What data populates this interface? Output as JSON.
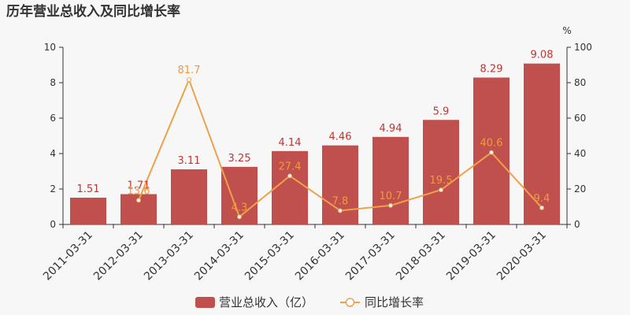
{
  "chart_data": {
    "type": "bar",
    "title": "历年营业总收入及同比增长率",
    "categories": [
      "2011-03-31",
      "2012-03-31",
      "2013-03-31",
      "2014-03-31",
      "2015-03-31",
      "2016-03-31",
      "2017-03-31",
      "2018-03-31",
      "2019-03-31",
      "2020-03-31"
    ],
    "series": [
      {
        "name": "营业总收入（亿）",
        "type": "bar",
        "axis": "left",
        "color": "#c0504d",
        "label_color": "#c23531",
        "values": [
          1.51,
          1.71,
          3.11,
          3.25,
          4.14,
          4.46,
          4.94,
          5.9,
          8.29,
          9.08
        ],
        "labels": [
          "1.51",
          "1.71",
          "3.11",
          "3.25",
          "4.14",
          "4.46",
          "4.94",
          "5.9",
          "8.29",
          "9.08"
        ]
      },
      {
        "name": "同比增长率",
        "type": "line",
        "axis": "right",
        "color": "#f0a04b",
        "label_color": "#ef9b3d",
        "values": [
          null,
          13.6,
          81.7,
          4.3,
          27.4,
          7.8,
          10.7,
          19.5,
          40.6,
          9.4
        ],
        "labels": [
          "",
          "13.6",
          "81.7",
          "4.3",
          "27.4",
          "7.8",
          "10.7",
          "19.5",
          "40.6",
          "9.4"
        ]
      }
    ],
    "y_left": {
      "min": 0,
      "max": 10,
      "ticks": [
        "0",
        "2",
        "4",
        "6",
        "8",
        "10"
      ]
    },
    "y_right": {
      "min": 0,
      "max": 100,
      "ticks": [
        "0",
        "20",
        "40",
        "60",
        "80",
        "100"
      ],
      "unit": "%"
    },
    "grid": false,
    "legend_position": "bottom"
  }
}
